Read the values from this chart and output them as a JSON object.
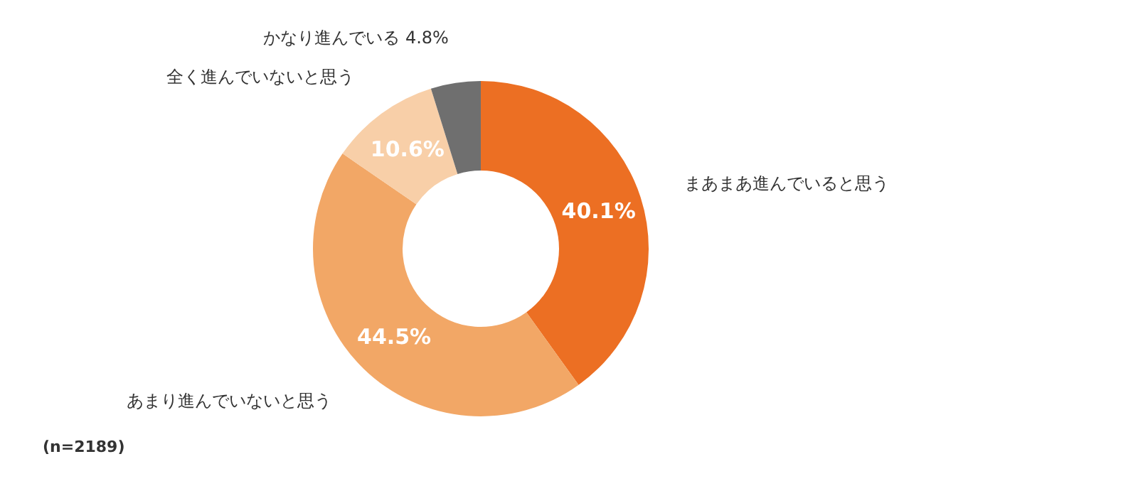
{
  "chart_data": {
    "type": "donut",
    "categories": [
      "まあまあ進んでいると思う",
      "あまり進んでいないと思う",
      "全く進んでいないと思う",
      "かなり進んでいる"
    ],
    "values": [
      40.1,
      44.5,
      10.6,
      4.8
    ],
    "colors": [
      "#ec6f23",
      "#f2a766",
      "#f8cfa8",
      "#6f6f6f"
    ],
    "value_labels": [
      "40.1%",
      "44.5%",
      "10.6%",
      "4.8%"
    ],
    "annotations": [
      "(n=2189)"
    ]
  }
}
